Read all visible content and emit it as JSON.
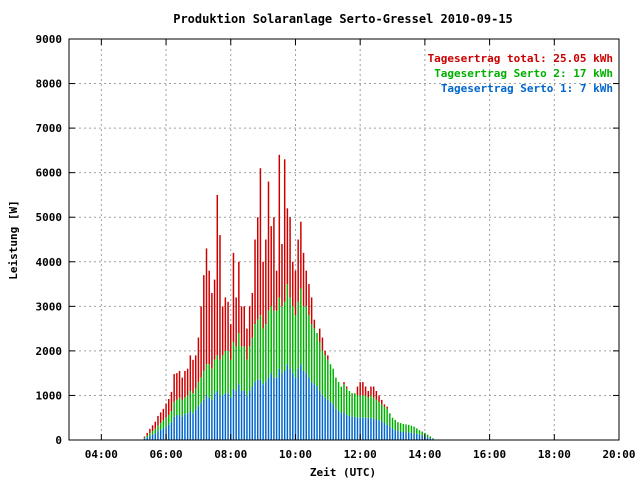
{
  "chart_data": {
    "type": "bar",
    "title": "Produktion Solaranlage Serto-Gressel 2010-09-15",
    "xlabel": "Zeit (UTC)",
    "ylabel": "Leistung [W]",
    "xlim": [
      3,
      20
    ],
    "ylim": [
      0,
      9000
    ],
    "y_ticks": [
      "0",
      "1000",
      "2000",
      "3000",
      "4000",
      "5000",
      "6000",
      "7000",
      "8000",
      "9000"
    ],
    "x_ticks": [
      {
        "t": 4,
        "label": "04:00"
      },
      {
        "t": 6,
        "label": "06:00"
      },
      {
        "t": 8,
        "label": "08:00"
      },
      {
        "t": 10,
        "label": "10:00"
      },
      {
        "t": 12,
        "label": "12:00"
      },
      {
        "t": 14,
        "label": "14:00"
      },
      {
        "t": 16,
        "label": "16:00"
      },
      {
        "t": 18,
        "label": "18:00"
      },
      {
        "t": 20,
        "label": "20:00"
      }
    ],
    "grid": true,
    "legend_position": "top-right",
    "colors": {
      "total": "#cc0000",
      "serto2": "#00b000",
      "serto1": "#0066cc"
    },
    "legend": [
      {
        "key": "total",
        "text": "Tagesertrag total: 25.05 kWh"
      },
      {
        "key": "serto2",
        "text": "Tagesertrag Serto 2: 17 kWh"
      },
      {
        "key": "serto1",
        "text": "Tagesertrag Serto 1: 7 kWh"
      }
    ],
    "interval_minutes": 5,
    "stacking": "serto1 bottom, serto2 above, total is top of bar",
    "series": [
      {
        "name": "Serto 1",
        "key": "serto1",
        "values": [
          30,
          60,
          90,
          120,
          150,
          200,
          230,
          260,
          300,
          340,
          400,
          520,
          560,
          560,
          520,
          580,
          600,
          640,
          600,
          680,
          760,
          820,
          900,
          1000,
          950,
          900,
          1050,
          1100,
          1000,
          1000,
          1050,
          1050,
          950,
          1150,
          1100,
          1250,
          1100,
          1100,
          1000,
          1100,
          1200,
          1300,
          1350,
          1350,
          1250,
          1300,
          1400,
          1500,
          1400,
          1400,
          1600,
          1500,
          1550,
          1700,
          1600,
          1500,
          1400,
          1600,
          1700,
          1550,
          1500,
          1400,
          1300,
          1250,
          1200,
          1100,
          1000,
          950,
          900,
          850,
          800,
          700,
          650,
          600,
          620,
          560,
          540,
          520,
          520,
          500,
          500,
          500,
          500,
          480,
          500,
          480,
          460,
          440,
          420,
          380,
          340,
          300,
          260,
          220,
          200,
          190,
          180,
          170,
          170,
          160,
          150,
          140,
          120,
          100,
          80,
          60,
          40,
          20
        ]
      },
      {
        "name": "Serto 2",
        "key": "serto2",
        "values": [
          50,
          100,
          150,
          200,
          250,
          320,
          380,
          440,
          500,
          560,
          650,
          850,
          900,
          950,
          900,
          950,
          1000,
          1100,
          1050,
          1150,
          1300,
          1400,
          1550,
          1700,
          1700,
          1600,
          1800,
          1900,
          1800,
          1900,
          2000,
          2000,
          1800,
          2200,
          2100,
          2400,
          2100,
          2100,
          1800,
          2100,
          2300,
          2600,
          2700,
          2800,
          2500,
          2600,
          2900,
          3000,
          2900,
          2900,
          3200,
          3000,
          3100,
          3500,
          3200,
          3000,
          2800,
          3100,
          3400,
          3000,
          3000,
          2800,
          2600,
          2500,
          2400,
          2200,
          2000,
          1900,
          1800,
          1700,
          1600,
          1400,
          1300,
          1200,
          1250,
          1150,
          1100,
          1050,
          1050,
          1000,
          1000,
          1000,
          1000,
          950,
          1000,
          950,
          900,
          850,
          800,
          750,
          700,
          600,
          500,
          450,
          400,
          380,
          360,
          350,
          340,
          320,
          300,
          260,
          220,
          190,
          160,
          120,
          80,
          40
        ]
      },
      {
        "name": "Total",
        "key": "total",
        "values": [
          80,
          160,
          250,
          330,
          410,
          540,
          620,
          700,
          820,
          920,
          1080,
          1480,
          1500,
          1550,
          1400,
          1550,
          1600,
          1900,
          1800,
          1900,
          2300,
          3000,
          3700,
          4300,
          3800,
          3300,
          3600,
          5500,
          4600,
          3000,
          3200,
          3100,
          2600,
          4200,
          3200,
          4000,
          3000,
          3000,
          2500,
          3000,
          3300,
          4500,
          5000,
          6100,
          4000,
          4500,
          5800,
          4800,
          5000,
          3800,
          6400,
          4400,
          6300,
          5200,
          5000,
          4000,
          3800,
          4500,
          4900,
          4200,
          3800,
          3500,
          3200,
          2700,
          2200,
          2500,
          2300,
          2000,
          1900,
          1700,
          1400,
          1300,
          1300,
          1200,
          1300,
          1200,
          1100,
          1000,
          1000,
          1200,
          1300,
          1300,
          1200,
          1100,
          1200,
          1200,
          1100,
          1000,
          900,
          800,
          750,
          600,
          500,
          450,
          400,
          380,
          360,
          350,
          340,
          320,
          300,
          260,
          220,
          190,
          160,
          120,
          80,
          40
        ]
      }
    ],
    "start_time": "05:20"
  }
}
